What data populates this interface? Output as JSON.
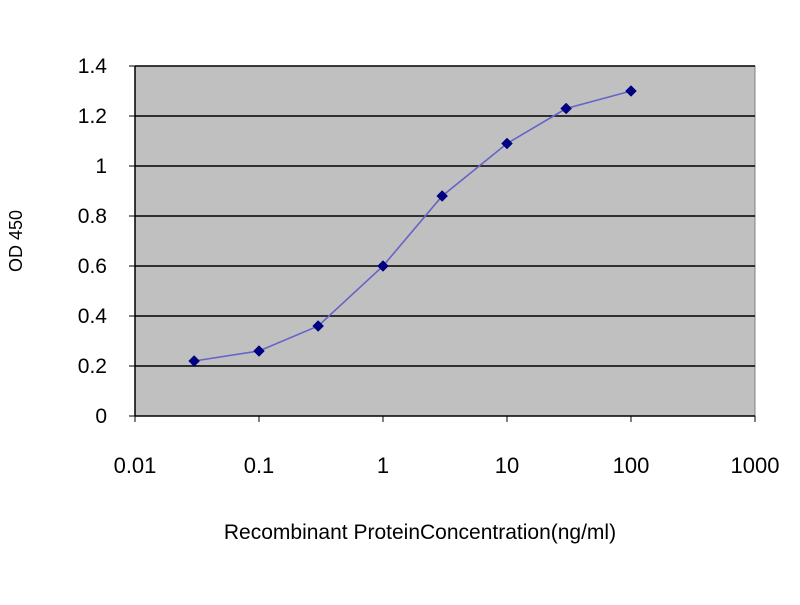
{
  "chart_data": {
    "type": "line",
    "title": "",
    "xlabel": "Recombinant ProteinConcentration(ng/ml)",
    "ylabel": "OD 450",
    "x_scale": "log",
    "xlim": [
      0.01,
      1000
    ],
    "ylim": [
      0,
      1.4
    ],
    "x_tick_labels": [
      "0.01",
      "0.1",
      "1",
      "10",
      "100",
      "1000"
    ],
    "y_tick_labels": [
      "0",
      "0.2",
      "0.4",
      "0.6",
      "0.8",
      "1",
      "1.2",
      "1.4"
    ],
    "grid": true,
    "legend": "none",
    "series": [
      {
        "x": [
          0.03,
          0.1,
          0.3,
          1,
          3,
          10,
          30,
          100
        ],
        "y": [
          0.22,
          0.26,
          0.36,
          0.6,
          0.88,
          1.09,
          1.23,
          1.3
        ]
      }
    ],
    "colors": {
      "plot_background": "#c0c0c0",
      "gridline": "#000000",
      "line": "#6464c8",
      "marker": "#000080",
      "axis": "#000000"
    }
  }
}
